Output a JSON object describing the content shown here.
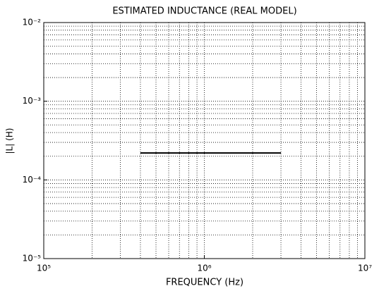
{
  "chart_data": {
    "type": "line",
    "title": "ESTIMATED INDUCTANCE (REAL MODEL)",
    "xlabel": "FREQUENCY  (Hz)",
    "ylabel": "|L| (H)",
    "x": [
      400000,
      3000000
    ],
    "series": [
      {
        "name": "|L|",
        "color": "#000000",
        "values": [
          0.00022,
          0.00022
        ]
      }
    ],
    "xscale": "log",
    "yscale": "log",
    "xlim": [
      100000,
      10000000
    ],
    "ylim": [
      1e-05,
      0.01
    ],
    "xticks": [
      {
        "value": 100000,
        "label": "10⁵"
      },
      {
        "value": 1000000,
        "label": "10⁶"
      },
      {
        "value": 10000000,
        "label": "10⁷"
      }
    ],
    "yticks": [
      {
        "value": 1e-05,
        "label": "10⁻⁵"
      },
      {
        "value": 0.0001,
        "label": "10⁻⁴"
      },
      {
        "value": 0.001,
        "label": "10⁻³"
      },
      {
        "value": 0.01,
        "label": "10⁻²"
      }
    ],
    "grid": true,
    "minor_grid": true
  }
}
